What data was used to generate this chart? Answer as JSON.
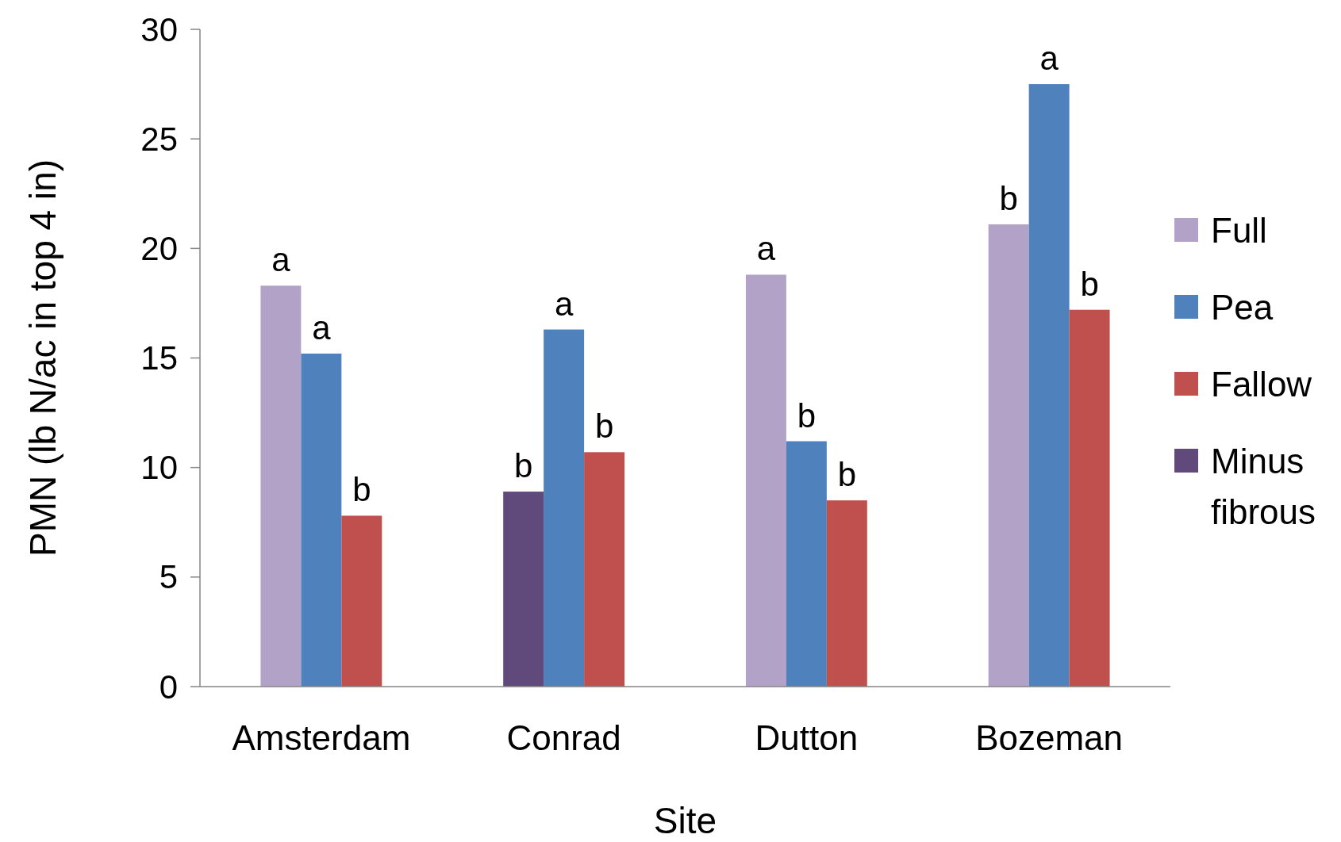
{
  "chart_data": {
    "type": "bar",
    "xlabel": "Site",
    "ylabel": "PMN (lb N/ac in top 4 in)",
    "categories": [
      "Amsterdam",
      "Conrad",
      "Dutton",
      "Bozeman"
    ],
    "series": [
      {
        "name": "Full",
        "color": "#b2a2c7",
        "values": [
          18.3,
          null,
          18.8,
          21.1
        ],
        "value_labels": [
          "a",
          null,
          "a",
          "b"
        ]
      },
      {
        "name": "Pea",
        "color": "#4f81bd",
        "values": [
          15.2,
          16.3,
          11.2,
          27.5
        ],
        "value_labels": [
          "a",
          "a",
          "b",
          "a"
        ]
      },
      {
        "name": "Fallow",
        "color": "#c0504d",
        "values": [
          7.8,
          10.7,
          8.5,
          17.2
        ],
        "value_labels": [
          "b",
          "b",
          "b",
          "b"
        ]
      },
      {
        "name": "Minus fibrous",
        "color": "#604a7b",
        "values": [
          null,
          8.9,
          null,
          null
        ],
        "value_labels": [
          null,
          "b",
          null,
          null
        ]
      }
    ],
    "ylim": [
      0,
      30
    ],
    "yticks": [
      0,
      5,
      10,
      15,
      20,
      25,
      30
    ],
    "grid": false,
    "legend": "right"
  }
}
